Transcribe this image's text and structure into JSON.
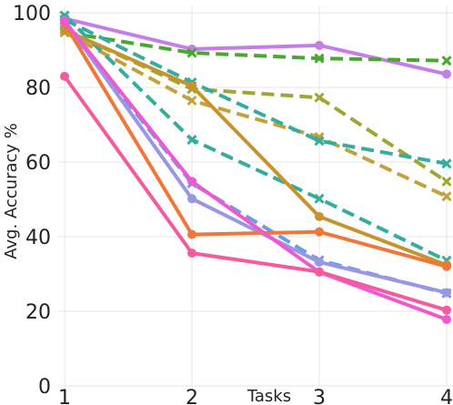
{
  "chart_data": {
    "type": "line",
    "xlabel": "Tasks",
    "ylabel": "Avg. Accuracy %",
    "x": [
      1,
      2,
      3,
      4
    ],
    "xlim": [
      0.95,
      4.05
    ],
    "ylim": [
      0,
      102
    ],
    "xticks": [
      "1",
      "2",
      "3",
      "4"
    ],
    "yticks": [
      "0",
      "20",
      "40",
      "60",
      "80",
      "100"
    ],
    "grid": true,
    "series": [
      {
        "color": "#c47ee8",
        "style": "solid",
        "marker": "circle",
        "values": [
          98.5,
          90.3,
          91.3,
          83.6
        ]
      },
      {
        "color": "#4aa831",
        "style": "dashed",
        "marker": "x",
        "values": [
          94.8,
          89.3,
          87.8,
          87.2
        ]
      },
      {
        "color": "#a1a532",
        "style": "dashed",
        "marker": "x",
        "values": [
          95.5,
          79.6,
          77.3,
          54.8
        ]
      },
      {
        "color": "#c2a23c",
        "style": "dashed",
        "marker": "x",
        "values": [
          94.8,
          76.5,
          66.7,
          50.8
        ]
      },
      {
        "color": "#35ad9c",
        "style": "dashed",
        "marker": "x",
        "values": [
          98.2,
          81.4,
          65.7,
          59.6
        ]
      },
      {
        "color": "#35ad9c",
        "style": "dashed",
        "marker": "x",
        "values": [
          99.3,
          66.0,
          50.2,
          33.6
        ]
      },
      {
        "color": "#c7932f",
        "style": "solid",
        "marker": "circle",
        "values": [
          95.4,
          80.4,
          45.4,
          32.4
        ]
      },
      {
        "color": "#6a9ee0",
        "style": "dashed",
        "marker": "x",
        "values": [
          97.1,
          54.3,
          33.7,
          24.8
        ]
      },
      {
        "color": "#9896e6",
        "style": "solid",
        "marker": "circle",
        "values": [
          98.0,
          50.2,
          33.2,
          25.0
        ]
      },
      {
        "color": "#f0773a",
        "style": "solid",
        "marker": "circle",
        "values": [
          97.2,
          40.6,
          41.3,
          32.0
        ]
      },
      {
        "color": "#ee58d2",
        "style": "solid",
        "marker": "circle",
        "values": [
          97.8,
          54.8,
          30.5,
          17.8
        ]
      },
      {
        "color": "#f45b9e",
        "style": "solid",
        "marker": "circle",
        "values": [
          83.0,
          35.6,
          30.6,
          20.3
        ]
      }
    ]
  }
}
